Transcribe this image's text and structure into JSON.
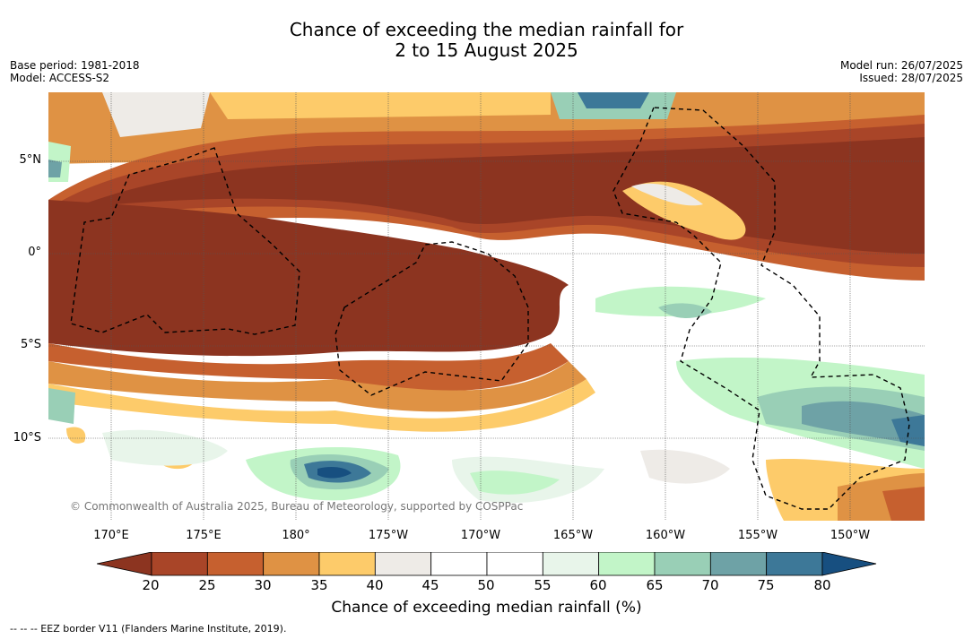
{
  "title": {
    "line1": "Chance of exceeding the median rainfall for",
    "line2": "2 to 15 August 2025"
  },
  "meta": {
    "base_period": "Base period: 1981-2018",
    "model": "Model: ACCESS-S2",
    "model_run": "Model run: 26/07/2025",
    "issued": "Issued: 28/07/2025"
  },
  "map": {
    "lat_labels": [
      "5°N",
      "0°",
      "5°S",
      "10°S"
    ],
    "lon_labels": [
      "170°E",
      "175°E",
      "180°",
      "175°W",
      "170°W",
      "165°W",
      "160°W",
      "155°W",
      "150°W"
    ],
    "copyright": "© Commonwealth of Australia 2025, Bureau of Meteorology, supported by COSPPac"
  },
  "colorbar": {
    "ticks": [
      "20",
      "25",
      "30",
      "35",
      "40",
      "45",
      "50",
      "55",
      "60",
      "65",
      "70",
      "75",
      "80"
    ],
    "colors": [
      "#a94528",
      "#c6602f",
      "#df9244",
      "#fdcb6a",
      "#eeebe7",
      "#ffffff",
      "#ffffff",
      "#e8f5ea",
      "#c2f5c8",
      "#99cfb6",
      "#6ea2a6",
      "#3d7898"
    ],
    "under_color": "#8c3420",
    "over_color": "#174f80",
    "title": "Chance of exceeding median rainfall (%)"
  },
  "footer": "--  --  -- EEZ border V11 (Flanders Marine Institute, 2019)."
}
